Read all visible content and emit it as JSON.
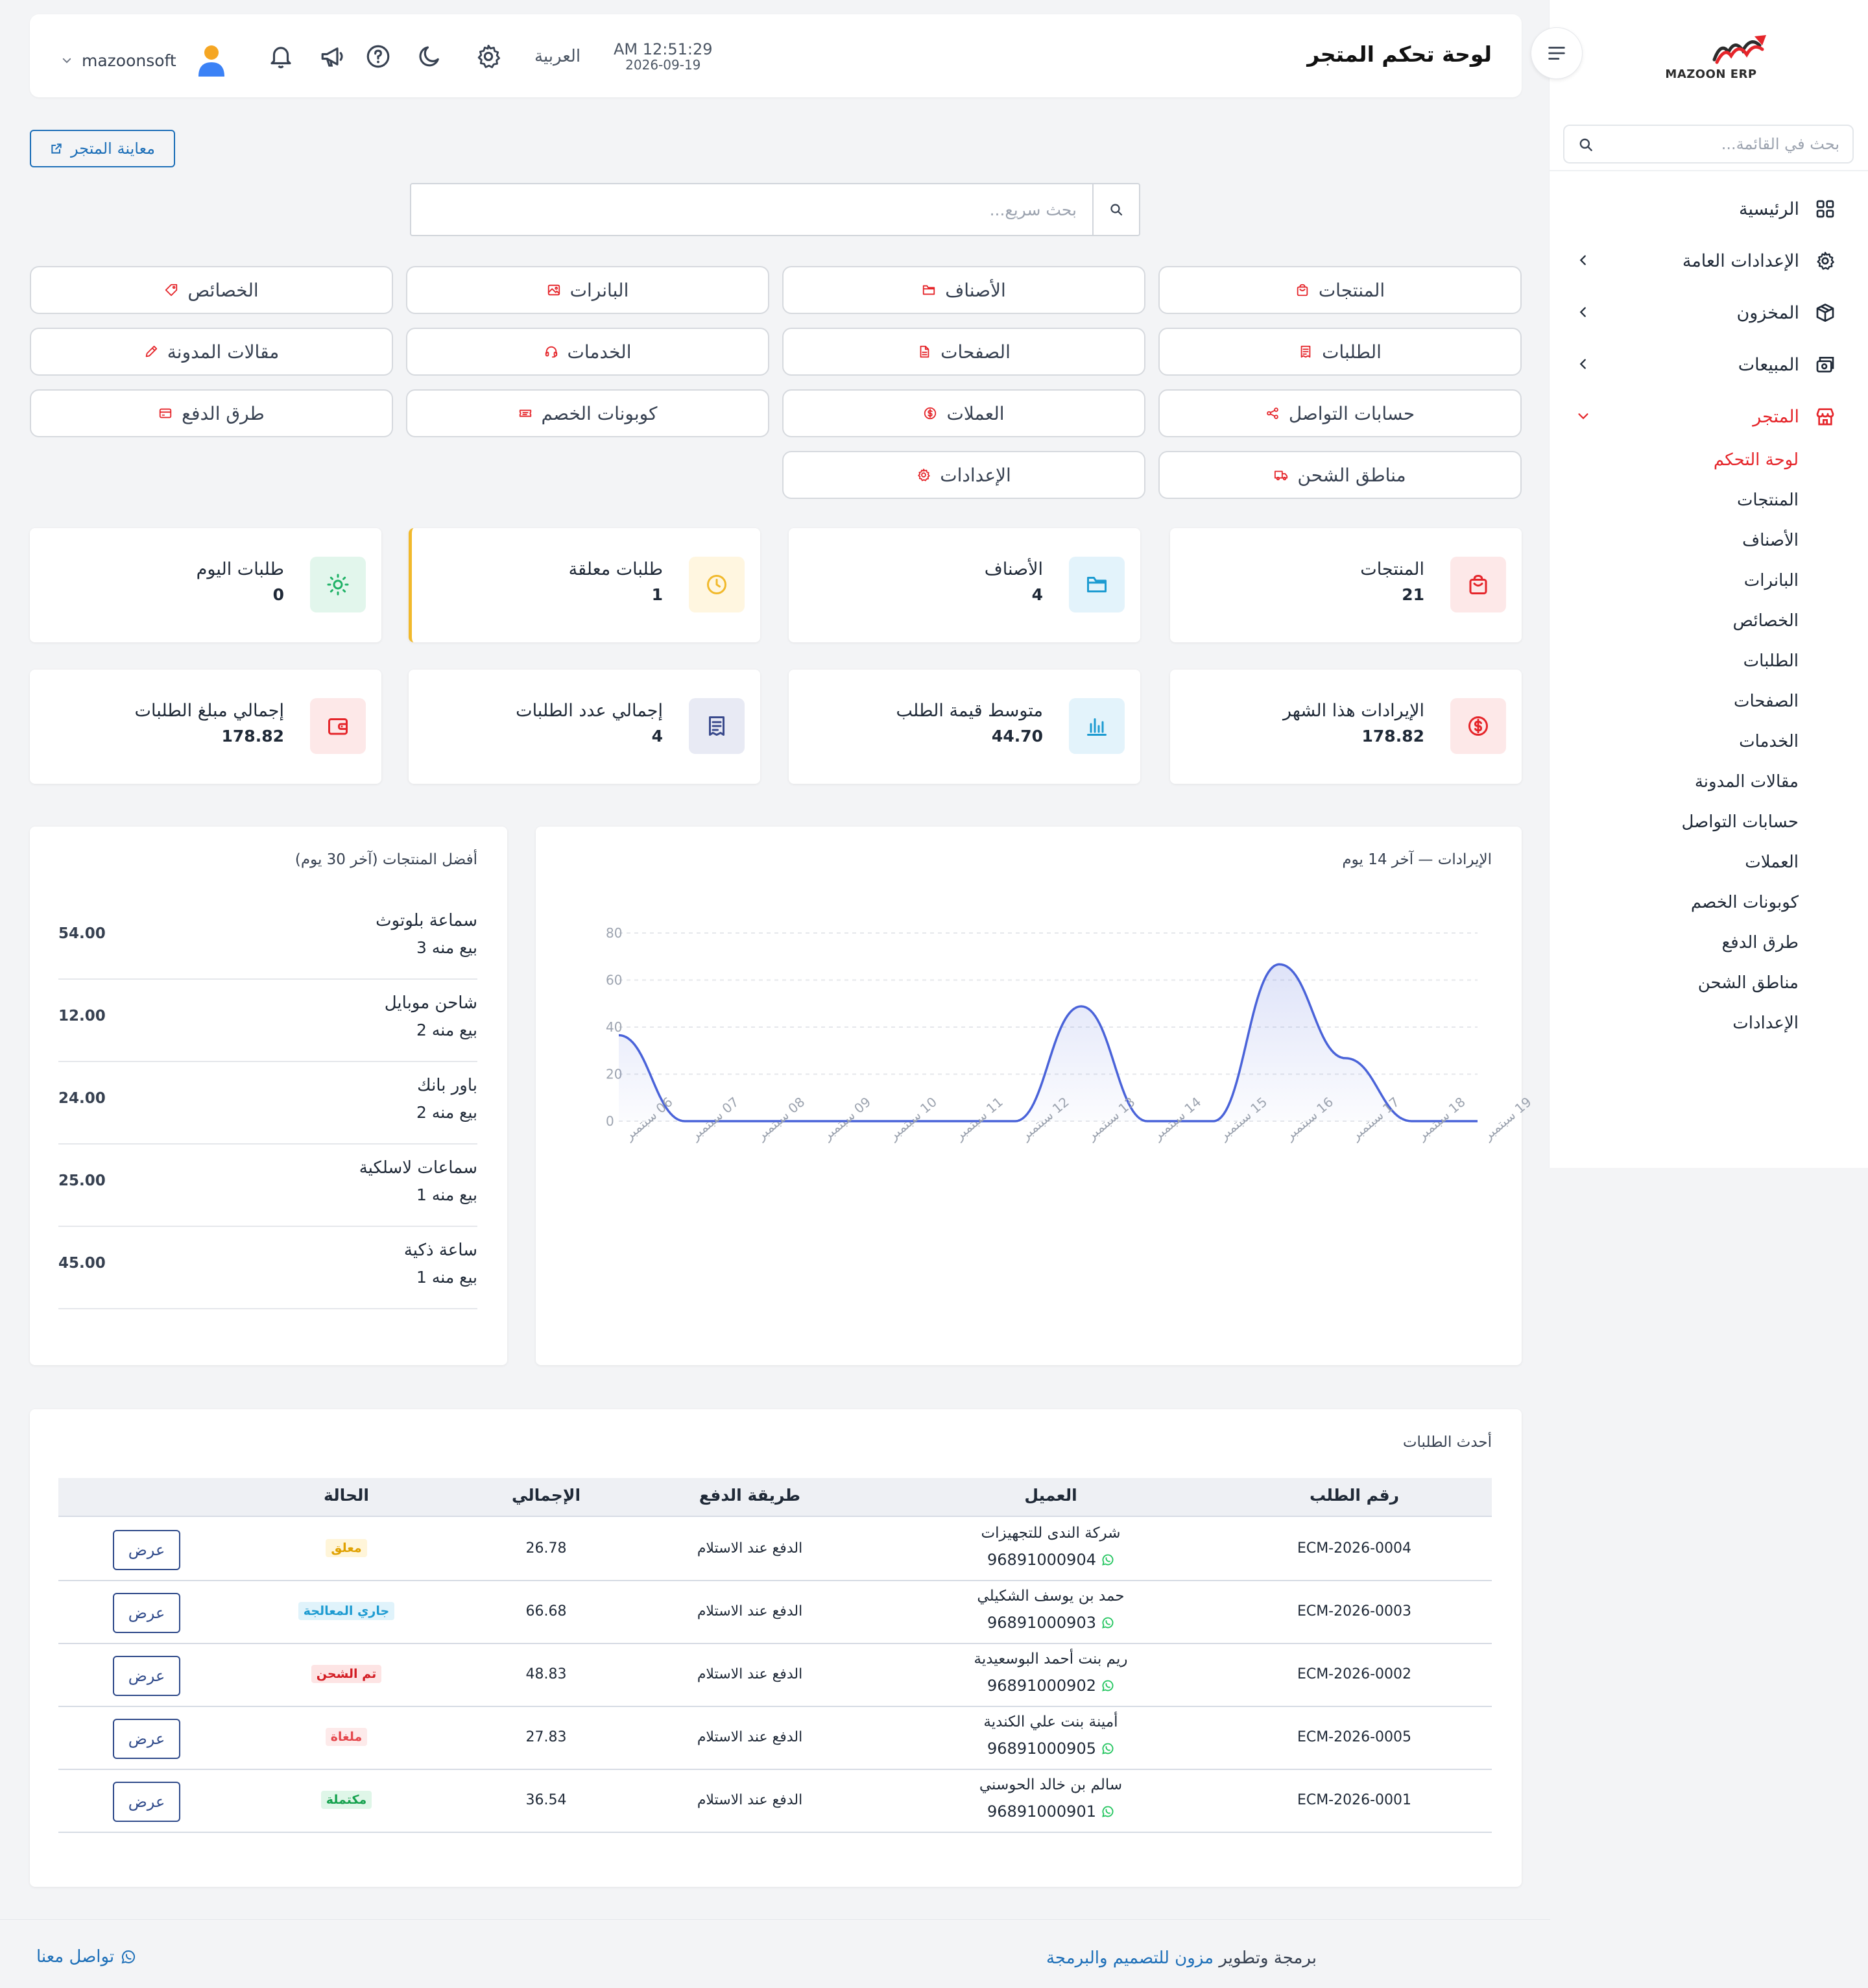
{
  "sidebar": {
    "logo_text": "MAZOON ERP",
    "logo_sub": "ERP",
    "search_placeholder": "بحث في القائمة...",
    "items": [
      {
        "label": "الرئيسية",
        "icon": "grid-icon"
      },
      {
        "label": "الإعدادات العامة",
        "icon": "gear-icon"
      },
      {
        "label": "المخزون",
        "icon": "box-icon"
      },
      {
        "label": "المبيعات",
        "icon": "cash-register-icon"
      },
      {
        "label": "المتجر",
        "icon": "store-icon"
      }
    ],
    "store_subitems": [
      "لوحة التحكم",
      "المنتجات",
      "الأصناف",
      "البانرات",
      "الخصائص",
      "الطلبات",
      "الصفحات",
      "الخدمات",
      "مقالات المدونة",
      "حسابات التواصل",
      "العملات",
      "كوبونات الخصم",
      "طرق الدفع",
      "مناطق الشحن",
      "الإعدادات"
    ]
  },
  "header": {
    "title": "لوحة تحكم المتجر",
    "time": "AM 12:51:29",
    "date": "2026-09-19",
    "language": "العربية",
    "username": "mazoonsoft"
  },
  "preview_button": "معاينة المتجر",
  "quick_search_placeholder": "بحث سريع...",
  "quick_links": [
    {
      "label": "المنتجات",
      "icon": "bag-icon"
    },
    {
      "label": "الأصناف",
      "icon": "folder-icon"
    },
    {
      "label": "البانرات",
      "icon": "image-icon"
    },
    {
      "label": "الخصائص",
      "icon": "tag-icon"
    },
    {
      "label": "الطلبات",
      "icon": "receipt-icon"
    },
    {
      "label": "الصفحات",
      "icon": "file-icon"
    },
    {
      "label": "الخدمات",
      "icon": "headset-icon"
    },
    {
      "label": "مقالات المدونة",
      "icon": "pen-icon"
    },
    {
      "label": "حسابات التواصل",
      "icon": "share-icon"
    },
    {
      "label": "العملات",
      "icon": "currency-icon"
    },
    {
      "label": "كوبونات الخصم",
      "icon": "ticket-icon"
    },
    {
      "label": "طرق الدفع",
      "icon": "card-icon"
    },
    {
      "label": "مناطق الشحن",
      "icon": "truck-icon"
    },
    {
      "label": "الإعدادات",
      "icon": "gear-icon"
    }
  ],
  "stats": [
    {
      "title": "المنتجات",
      "value": "21",
      "icon": "bag-icon",
      "color": "#e5252a",
      "bg": "#fde8e8"
    },
    {
      "title": "الأصناف",
      "value": "4",
      "icon": "folder-icon",
      "color": "#1d9bd1",
      "bg": "#e3f3fb"
    },
    {
      "title": "طلبات معلقة",
      "value": "1",
      "icon": "clock-icon",
      "color": "#f1b92c",
      "bg": "#fff6e0"
    },
    {
      "title": "طلبات اليوم",
      "value": "0",
      "icon": "sun-icon",
      "color": "#20b267",
      "bg": "#e2f6ec"
    },
    {
      "title": "الإيرادات هذا الشهر",
      "value": "178.82",
      "icon": "dollar-circle-icon",
      "color": "#e5252a",
      "bg": "#fde8e8"
    },
    {
      "title": "متوسط قيمة الطلب",
      "value": "44.70",
      "icon": "bar-chart-icon",
      "color": "#1d9bd1",
      "bg": "#e3f3fb"
    },
    {
      "title": "إجمالي عدد الطلبات",
      "value": "4",
      "icon": "receipt-icon",
      "color": "#3a4a8c",
      "bg": "#e8eaf4"
    },
    {
      "title": "إجمالي مبلغ الطلبات",
      "value": "178.82",
      "icon": "wallet-icon",
      "color": "#e5252a",
      "bg": "#fde8e8"
    }
  ],
  "revenue_panel_title": "الإيرادات — آخر 14 يوم",
  "chart_data": {
    "type": "area",
    "title": "الإيرادات — آخر 14 يوم",
    "x": [
      "06 سبتمبر",
      "07 سبتمبر",
      "08 سبتمبر",
      "09 سبتمبر",
      "10 سبتمبر",
      "11 سبتمبر",
      "12 سبتمبر",
      "13 سبتمبر",
      "14 سبتمبر",
      "15 سبتمبر",
      "16 سبتمبر",
      "17 سبتمبر",
      "18 سبتمبر",
      "19 سبتمبر"
    ],
    "y_ticks": [
      0,
      20,
      40,
      60,
      80
    ],
    "ylim": [
      0,
      80
    ],
    "series": [
      {
        "values": [
          36.54,
          0,
          0,
          0,
          0,
          0,
          0,
          48.83,
          0,
          0,
          66.68,
          26.78,
          0,
          0
        ]
      }
    ],
    "color": "#4a63d9",
    "grid": true
  },
  "top_products": {
    "title": "أفضل المنتجات (آخر 30 يوم)",
    "items": [
      {
        "name": "سماعة بلوتوث",
        "sold": "بيع منه 3",
        "value": "54.00"
      },
      {
        "name": "شاحن موبايل",
        "sold": "بيع منه 2",
        "value": "12.00"
      },
      {
        "name": "باور بانك",
        "sold": "بيع منه 2",
        "value": "24.00"
      },
      {
        "name": "سماعات لاسلكية",
        "sold": "بيع منه 1",
        "value": "25.00"
      },
      {
        "name": "ساعة ذكية",
        "sold": "بيع منه 1",
        "value": "45.00"
      }
    ]
  },
  "orders": {
    "title": "أحدث الطلبات",
    "columns": [
      "رقم الطلب",
      "العميل",
      "طريقة الدفع",
      "الإجمالي",
      "الحالة"
    ],
    "view_label": "عرض",
    "rows": [
      {
        "id": "ECM-2026-0004",
        "customer": "شركة الندى للتجهيزات",
        "phone": "96891000904",
        "payment": "الدفع عند الاستلام",
        "total": "26.78",
        "status": "معلق",
        "status_color": "#e0a100",
        "status_bg": "#fff5d9"
      },
      {
        "id": "ECM-2026-0003",
        "customer": "حمد بن يوسف الشكيلي",
        "phone": "96891000903",
        "payment": "الدفع عند الاستلام",
        "total": "66.68",
        "status": "جاري المعالجة",
        "status_color": "#1d9bd1",
        "status_bg": "#e0f3fb"
      },
      {
        "id": "ECM-2026-0002",
        "customer": "ريم بنت أحمد البوسعيدية",
        "phone": "96891000902",
        "payment": "الدفع عند الاستلام",
        "total": "48.83",
        "status": "تم الشحن",
        "status_color": "#d31d24",
        "status_bg": "#fde4e4"
      },
      {
        "id": "ECM-2026-0005",
        "customer": "أمينة بنت علي الكندية",
        "phone": "96891000905",
        "payment": "الدفع عند الاستلام",
        "total": "27.83",
        "status": "ملغاة",
        "status_color": "#e5484d",
        "status_bg": "#fdeaea"
      },
      {
        "id": "ECM-2026-0001",
        "customer": "سالم بن خالد الحوسني",
        "phone": "96891000901",
        "payment": "الدفع عند الاستلام",
        "total": "36.54",
        "status": "مكتملة",
        "status_color": "#17a24f",
        "status_bg": "#dff6e8"
      }
    ]
  },
  "footer": {
    "credit_prefix": "برمجة وتطوير",
    "credit_link": "مزون للتصميم والبرمجة",
    "contact": "تواصل معنا"
  }
}
